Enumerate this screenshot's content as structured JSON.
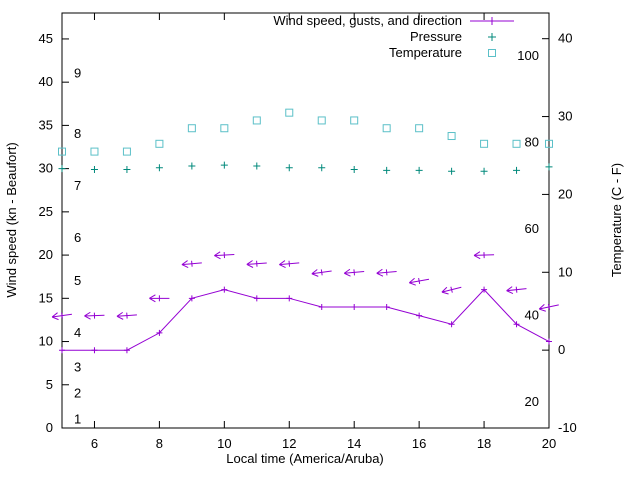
{
  "axes": {
    "x_label": "Local time (America/Aruba)",
    "y_left_label": "Wind speed (kn - Beaufort)",
    "y_right_label": "Temperature (C - F)"
  },
  "legend": [
    {
      "label": "Wind speed, gusts, and direction",
      "series": "wind"
    },
    {
      "label": "Pressure",
      "series": "pressure"
    },
    {
      "label": "Temperature",
      "series": "temperature"
    }
  ],
  "colors": {
    "wind": "#9400d3",
    "pressure": "#00897b",
    "temperature": "#5bc0c8",
    "axis": "#000000"
  },
  "chart_data": {
    "type": "line",
    "title": "",
    "xlabel": "Local time (America/Aruba)",
    "ylabel_left": "Wind speed (kn - Beaufort)",
    "ylabel_right": "Temperature (C - F)",
    "grid": false,
    "legend_position": "top-right-inside",
    "x": [
      5,
      6,
      7,
      8,
      9,
      10,
      11,
      12,
      13,
      14,
      15,
      16,
      17,
      18,
      19,
      20
    ],
    "x_range": [
      5,
      20
    ],
    "y_left_range": [
      0,
      48
    ],
    "y_right_range": [
      -10,
      43.3
    ],
    "x_ticks": [
      6,
      8,
      10,
      12,
      14,
      16,
      18,
      20
    ],
    "y_left_ticks": [
      0,
      5,
      10,
      15,
      20,
      25,
      30,
      35,
      40,
      45
    ],
    "y_right_ticks": [
      -10,
      0,
      10,
      20,
      30,
      40
    ],
    "beaufort_scale": {
      "labels": [
        "1",
        "2",
        "3",
        "4",
        "5",
        "6",
        "7",
        "8",
        "9"
      ],
      "knots": [
        1,
        4,
        7,
        11,
        17,
        22,
        28,
        34,
        41
      ]
    },
    "fahrenheit_scale": {
      "labels": [
        "20",
        "40",
        "60",
        "80",
        "100"
      ],
      "values": [
        20,
        40,
        60,
        80,
        100
      ]
    },
    "series": [
      {
        "name": "Wind speed, gusts, and direction",
        "style": "line-with-gust-arrows",
        "axis": "left",
        "unit": "kn",
        "wind_speed": [
          9,
          9,
          9,
          11,
          15,
          16,
          15,
          15,
          14,
          14,
          14,
          13,
          12,
          16,
          12,
          10
        ],
        "gusts": [
          13,
          13,
          13,
          15,
          19,
          20,
          19,
          19,
          18,
          18,
          18,
          17,
          16,
          20,
          16,
          14
        ],
        "arrow_rotation_deg": [
          -8,
          -2,
          -4,
          0,
          -5,
          -3,
          -4,
          -5,
          -8,
          -5,
          -5,
          -10,
          -14,
          -2,
          -6,
          -12
        ]
      },
      {
        "name": "Pressure",
        "style": "points",
        "marker": "plus",
        "axis": "left",
        "unit": "inHg",
        "values": [
          30.0,
          29.9,
          29.9,
          30.1,
          30.3,
          30.4,
          30.3,
          30.1,
          30.1,
          29.9,
          29.8,
          29.8,
          29.7,
          29.7,
          29.8,
          30.2
        ]
      },
      {
        "name": "Temperature",
        "style": "points",
        "marker": "open-square",
        "axis": "right",
        "unit": "C",
        "values": [
          25.5,
          25.5,
          25.5,
          26.5,
          28.5,
          28.5,
          29.5,
          30.5,
          29.5,
          29.5,
          28.5,
          28.5,
          27.5,
          26.5,
          26.5,
          26.5
        ]
      }
    ]
  }
}
